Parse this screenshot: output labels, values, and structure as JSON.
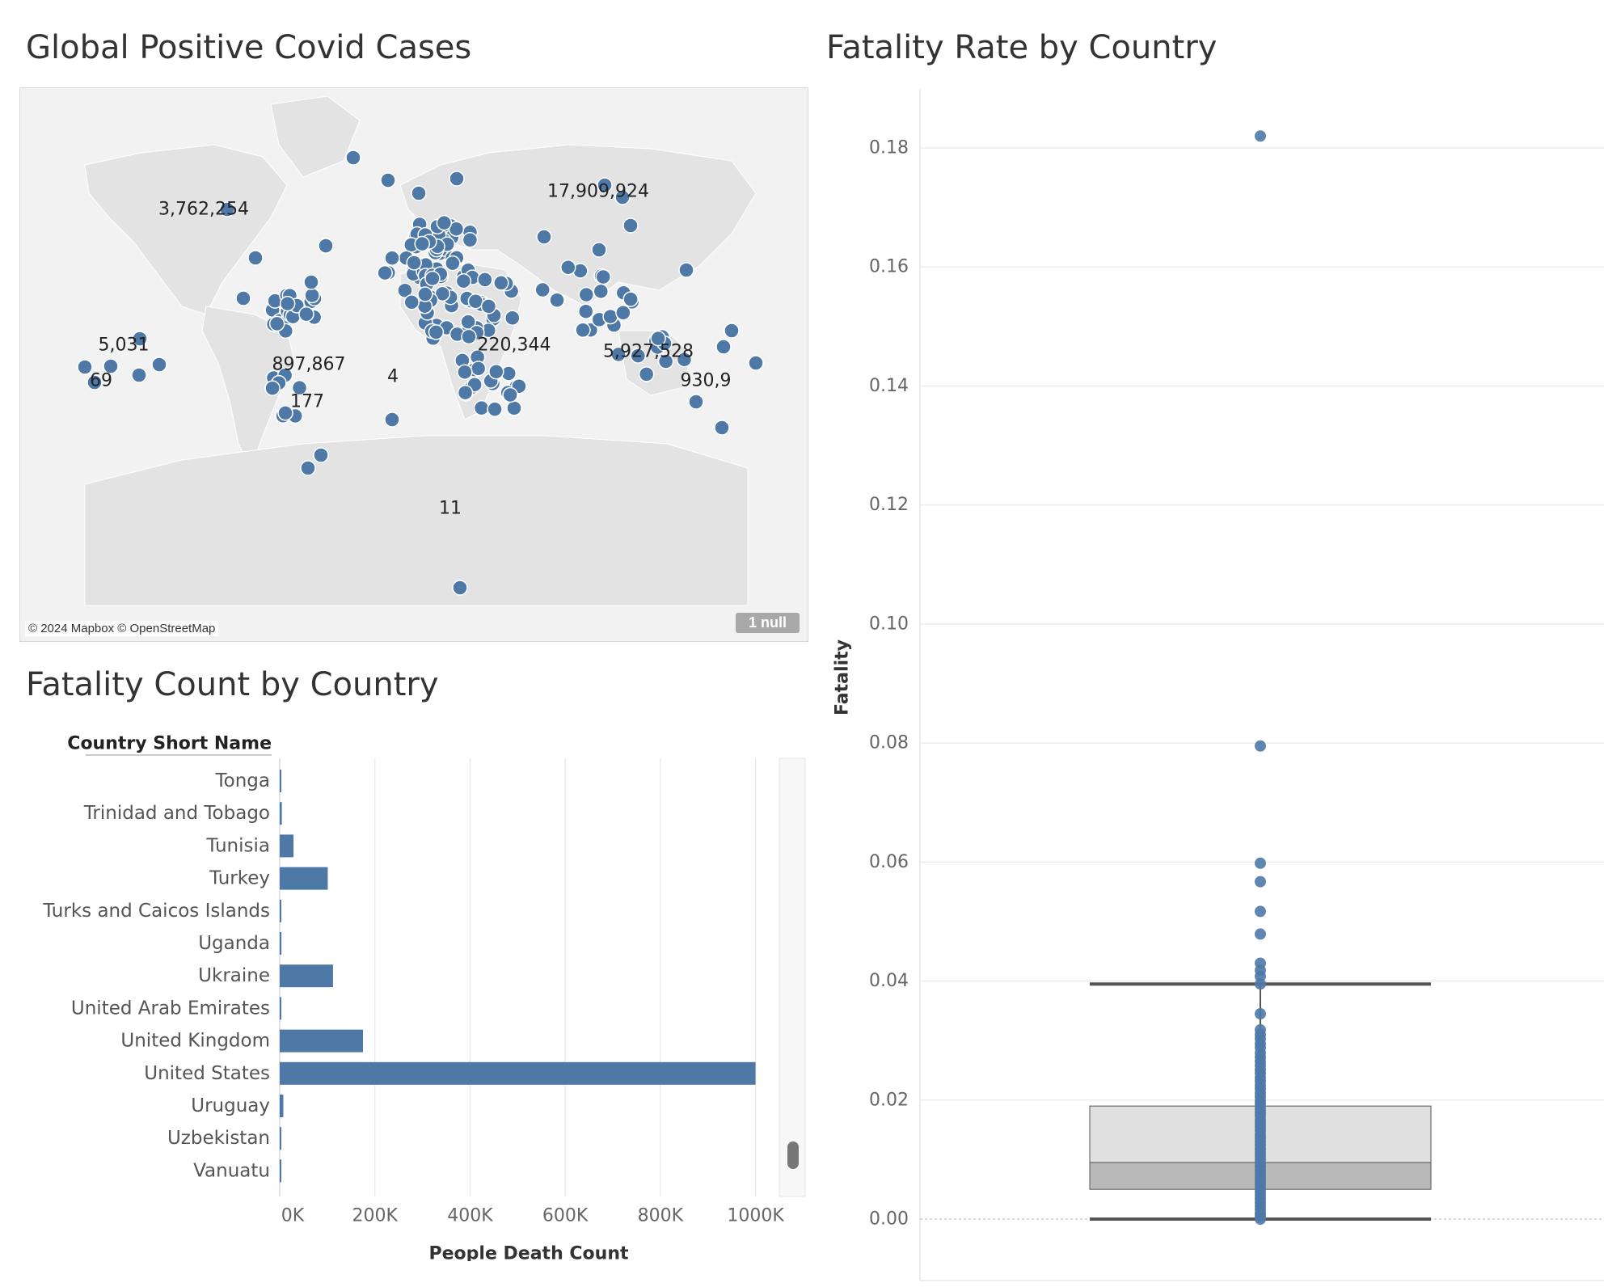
{
  "titles": {
    "map": "Global Positive Covid Cases",
    "bar": "Fatality Count by Country",
    "box": "Fatality Rate by Country"
  },
  "map": {
    "attribution": "© 2024 Mapbox © OpenStreetMap",
    "null_badge": "1 null",
    "point_color": "#4e79a7",
    "labels": [
      "3,762,254",
      "17,909,924",
      "5,031",
      "897,867",
      "4",
      "220,344",
      "5,927,528",
      "69",
      "930,9",
      "177",
      "11"
    ]
  },
  "chart_data": [
    {
      "type": "bar",
      "orientation": "horizontal",
      "title": "Fatality Count by Country",
      "category_header": "Country Short Name",
      "xlabel": "People Death Count",
      "xlim": [
        0,
        1050000
      ],
      "x_ticks": [
        "0K",
        "200K",
        "400K",
        "600K",
        "800K",
        "1000K"
      ],
      "x_tick_values": [
        0,
        200000,
        400000,
        600000,
        800000,
        1000000
      ],
      "color": "#4e79a7",
      "categories": [
        "Tonga",
        "Trinidad and Tobago",
        "Tunisia",
        "Turkey",
        "Turks and Caicos Islands",
        "Uganda",
        "Ukraine",
        "United Arab Emirates",
        "United Kingdom",
        "United States",
        "Uruguay",
        "Uzbekistan",
        "Vanuatu"
      ],
      "values": [
        13,
        4400,
        29000,
        101000,
        40,
        3600,
        112000,
        2350,
        175000,
        1000000,
        7600,
        1640,
        14
      ]
    },
    {
      "type": "scatter",
      "subtype": "box-plot",
      "title": "Fatality Rate by Country",
      "ylabel": "Fatality",
      "ylim": [
        -0.004,
        0.19
      ],
      "y_ticks": [
        "0.00",
        "0.02",
        "0.04",
        "0.06",
        "0.08",
        "0.10",
        "0.12",
        "0.14",
        "0.16",
        "0.18"
      ],
      "y_tick_values": [
        0,
        0.02,
        0.04,
        0.06,
        0.08,
        0.1,
        0.12,
        0.14,
        0.16,
        0.18
      ],
      "color": "#4e79a7",
      "box": {
        "whisker_low": 0.0,
        "q1": 0.005,
        "median": 0.0095,
        "q3": 0.019,
        "whisker_high": 0.0395
      },
      "outliers": [
        0.182,
        0.0795,
        0.0598,
        0.0567,
        0.0517,
        0.0479,
        0.043,
        0.0418,
        0.0408,
        0.0395,
        0.0345,
        0.0318,
        0.031,
        0.0303,
        0.0295,
        0.0288,
        0.0279,
        0.0272,
        0.0265,
        0.0258,
        0.0251,
        0.0245,
        0.0238,
        0.0232,
        0.0225,
        0.0219,
        0.0212,
        0.0206,
        0.0199,
        0.0193,
        0.0186,
        0.018,
        0.0174,
        0.0167,
        0.0161,
        0.0155,
        0.0149,
        0.0142,
        0.0136,
        0.013,
        0.0124,
        0.0118,
        0.0112,
        0.0106,
        0.01,
        0.0094,
        0.0088,
        0.0082,
        0.0076,
        0.007,
        0.0064,
        0.0058,
        0.0052,
        0.0046,
        0.004,
        0.0034,
        0.0028,
        0.0022,
        0.0016,
        0.001,
        0.0005,
        0.0
      ]
    }
  ]
}
